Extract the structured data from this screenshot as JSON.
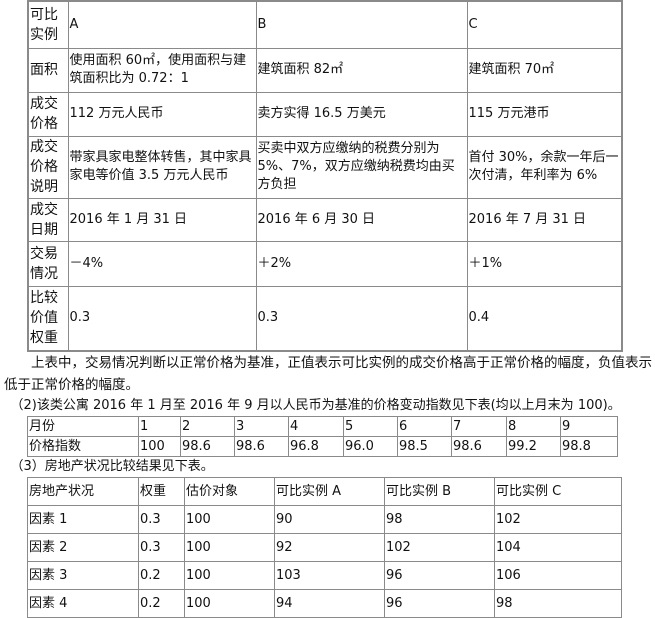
{
  "table1": {
    "rows": [
      [
        "可比实例",
        "A",
        "B",
        "C"
      ],
      [
        "面积",
        "使用面积 60㎡，使用面积与建筑面积比为 0.72：1",
        "建筑面积 82㎡",
        "建筑面积 70㎡"
      ],
      [
        "成交价格",
        "112 万元人民币",
        "卖方实得 16.5 万美元",
        "115 万元港币"
      ],
      [
        "成交价格说明",
        "带家具家电整体转售，其中家具家电等价值 3.5 万元人民币",
        "买卖中双方应缴纳的税费分别为 5%、7%，双方应缴纳税费均由买方负担",
        "首付 30%，余款一年后一次付清，年利率为 6%"
      ],
      [
        "成交日期",
        "2016 年 1 月 31 日",
        "2016 年 6 月 30 日",
        "2016 年 7 月 31 日"
      ],
      [
        "交易情况",
        "－4%",
        "＋2%",
        "＋1%"
      ],
      [
        "比较价值权重",
        "0.3",
        "0.3",
        "0.4"
      ]
    ]
  },
  "note1": "　　上表中，交易情况判断以正常价格为基准，正值表示可比实例的成交价格高于正常价格的幅度，负值表示低于正常价格的幅度。",
  "note2": "　（2)该类公寓 2016 年 1 月至 2016 年 9 月以人民币为基准的价格变动指数见下表(均以上月末为 100)。",
  "table2": {
    "rows": [
      [
        "月份",
        "1",
        "2",
        "3",
        "4",
        "5",
        "6",
        "7",
        "8",
        "9"
      ],
      [
        "价格指数",
        "100",
        "98.6",
        "98.6",
        "96.8",
        "96.0",
        "98.5",
        "98.6",
        "99.2",
        "98.8"
      ]
    ]
  },
  "note3": "　（3）房地产状况比较结果见下表。",
  "table3": {
    "rows": [
      [
        "房地产状况",
        "权重",
        "估价对象",
        "可比实例 A",
        "可比实例 B",
        "可比实例 C"
      ],
      [
        "因素 1",
        "0.3",
        "100",
        "90",
        "98",
        "102"
      ],
      [
        "因素 2",
        "0.3",
        "100",
        "92",
        "102",
        "104"
      ],
      [
        "因素 3",
        "0.2",
        "100",
        "103",
        "96",
        "106"
      ],
      [
        "因素 4",
        "0.2",
        "100",
        "94",
        "96",
        "98"
      ]
    ]
  }
}
